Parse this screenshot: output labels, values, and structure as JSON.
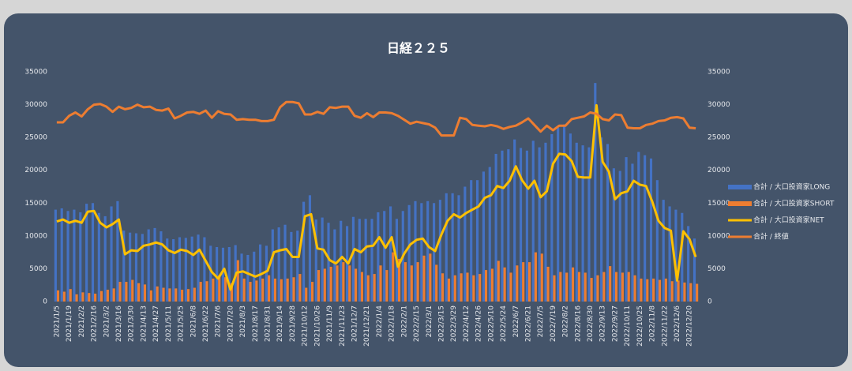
{
  "chart_data": {
    "type": "combo",
    "title": "日経２２５",
    "categories": [
      "2021/1/5",
      null,
      "2021/1/19",
      null,
      "2021/2/2",
      null,
      "2021/2/16",
      null,
      "2021/3/2",
      null,
      "2021/3/16",
      null,
      "2021/3/30",
      null,
      "2021/4/13",
      null,
      "2021/4/27",
      null,
      "2021/5/11",
      null,
      "2021/5/25",
      null,
      "2021/6/8",
      null,
      "2021/6/22",
      null,
      "2021/7/6",
      null,
      "2021/7/20",
      null,
      "2021/8/3",
      null,
      "2021/8/17",
      null,
      "2021/8/31",
      null,
      "2021/9/14",
      null,
      "2021/9/28",
      null,
      "2021/10/12",
      null,
      "2021/10/26",
      null,
      "2021/11/9",
      null,
      "2021/11/23",
      null,
      "2021/12/7",
      null,
      "2021/12/21",
      null,
      "2022/1/4",
      null,
      "2022/1/18",
      null,
      "2022/2/1",
      null,
      "2022/2/15",
      null,
      "2022/3/1",
      null,
      "2022/3/15",
      null,
      "2022/3/29",
      null,
      "2022/4/12",
      null,
      "2022/4/26",
      null,
      "2022/5/10",
      null,
      "2022/5/24",
      null,
      "2022/6/7",
      null,
      "2022/6/21",
      null,
      "2022/7/5",
      null,
      "2022/7/19",
      null,
      "2022/8/2",
      null,
      "2022/8/16",
      null,
      "2022/8/30",
      null,
      "2022/9/13",
      null,
      "2022/9/27",
      null,
      "2022/10/11",
      null,
      "2022/10/25",
      null,
      "2022/11/8",
      null,
      "2022/11/22",
      null,
      "2022/12/6",
      null,
      "2022/12/20",
      null
    ],
    "series": [
      {
        "name": "合計 / 大口投資家LONG",
        "kind": "bar",
        "color": "#4472c4",
        "values": [
          14000,
          14200,
          13800,
          14000,
          13600,
          14900,
          15000,
          13500,
          13000,
          14500,
          15300,
          10800,
          10500,
          10400,
          10300,
          11000,
          11200,
          10700,
          9600,
          9500,
          9800,
          9700,
          9900,
          10200,
          9800,
          8500,
          8300,
          8200,
          8300,
          8600,
          7300,
          7100,
          7600,
          8700,
          8500,
          11000,
          11300,
          11700,
          10600,
          10800,
          15200,
          16200,
          12500,
          12800,
          12000,
          11000,
          12300,
          11500,
          12900,
          12600,
          12600,
          12600,
          13600,
          13800,
          14500,
          12600,
          13800,
          14700,
          15300,
          15000,
          15300,
          15000,
          15500,
          16500,
          16500,
          16200,
          17500,
          18500,
          18500,
          19800,
          20500,
          22500,
          23000,
          23200,
          24700,
          23400,
          23000,
          24500,
          23500,
          24200,
          25500,
          26500,
          27000,
          25600,
          24200,
          23800,
          23500,
          33300,
          25000,
          24000,
          20300,
          19900,
          22000,
          21000,
          22800,
          22300,
          21800,
          18500,
          15500,
          14500,
          14000,
          13500,
          11500,
          9600
        ]
      },
      {
        "name": "合計 / 大口投資家SHORT",
        "kind": "bar",
        "color": "#ed7d31",
        "values": [
          1700,
          1500,
          1900,
          1100,
          1400,
          1300,
          1200,
          1600,
          1800,
          2000,
          3000,
          3000,
          3300,
          2800,
          2600,
          1700,
          2300,
          2100,
          2000,
          2000,
          1800,
          1900,
          2100,
          3000,
          3100,
          3500,
          4000,
          3700,
          2800,
          6300,
          3500,
          3000,
          3200,
          3500,
          4000,
          3500,
          3400,
          3500,
          3700,
          4200,
          2100,
          3000,
          4800,
          5000,
          5300,
          5500,
          6000,
          5500,
          5000,
          4500,
          4000,
          4200,
          5500,
          4800,
          7500,
          6500,
          6000,
          5500,
          6000,
          7000,
          7300,
          5600,
          4300,
          3500,
          4000,
          4300,
          4400,
          4000,
          4200,
          4800,
          5000,
          6200,
          5200,
          4400,
          5500,
          6000,
          6000,
          7500,
          7300,
          5300,
          4000,
          4500,
          4400,
          5200,
          4500,
          4400,
          3600,
          4000,
          4500,
          5400,
          4500,
          4400,
          4500,
          4000,
          3500,
          3400,
          3500,
          3300,
          3500,
          3100,
          3200,
          2900,
          2800,
          2700
        ]
      },
      {
        "name": "合計 / 大口投資家NET",
        "kind": "line",
        "color": "#ffc000",
        "values": [
          12200,
          12500,
          12000,
          12300,
          12000,
          13700,
          13800,
          12000,
          11300,
          11800,
          12500,
          7200,
          7800,
          7700,
          8500,
          8700,
          9000,
          8700,
          7800,
          7400,
          7900,
          7700,
          7100,
          7900,
          6200,
          4500,
          3500,
          5000,
          1800,
          4400,
          4600,
          4200,
          3800,
          4200,
          4700,
          7500,
          7800,
          8000,
          6800,
          6800,
          13000,
          13300,
          8100,
          7900,
          6300,
          5800,
          6800,
          5800,
          8000,
          7500,
          8400,
          8500,
          9800,
          8200,
          9800,
          5300,
          7300,
          8700,
          9400,
          9600,
          8300,
          7700,
          10200,
          12300,
          13300,
          12800,
          13500,
          14000,
          14500,
          15800,
          16200,
          17600,
          17300,
          18400,
          20600,
          18500,
          17200,
          18400,
          15900,
          16800,
          21000,
          22500,
          22400,
          21400,
          19000,
          18900,
          18900,
          29900,
          21300,
          19800,
          15600,
          16500,
          16800,
          18400,
          17800,
          17600,
          15200,
          12300,
          11200,
          10800,
          3200,
          10700,
          9500,
          6800
        ]
      },
      {
        "name": "合計 / 終値",
        "kind": "line",
        "axis": "y2",
        "color": "#ed7d31",
        "values": [
          27300,
          27300,
          28300,
          28800,
          28200,
          29300,
          30000,
          30100,
          29700,
          28900,
          29700,
          29300,
          29500,
          30000,
          29600,
          29700,
          29200,
          29100,
          29400,
          27900,
          28300,
          28800,
          28900,
          28600,
          29100,
          28000,
          29000,
          28600,
          28500,
          27700,
          27800,
          27700,
          27700,
          27500,
          27500,
          27700,
          29600,
          30400,
          30400,
          30200,
          28500,
          28500,
          28900,
          28600,
          29600,
          29500,
          29700,
          29700,
          28300,
          28000,
          28700,
          28100,
          28800,
          28800,
          28700,
          28300,
          27700,
          27100,
          27400,
          27200,
          27000,
          26500,
          25300,
          25300,
          25300,
          28000,
          27800,
          26900,
          26800,
          26700,
          26900,
          26700,
          26300,
          26600,
          26800,
          27300,
          27900,
          26900,
          25900,
          26800,
          26100,
          26800,
          26800,
          27800,
          28000,
          28200,
          28800,
          28600,
          27800,
          27600,
          28500,
          28400,
          26500,
          26400,
          26400,
          26900,
          27100,
          27500,
          27600,
          28000,
          28100,
          27900,
          26500,
          26400
        ]
      }
    ],
    "ylim": [
      0,
      35000
    ],
    "yticks": [
      0,
      5000,
      10000,
      15000,
      20000,
      25000,
      30000,
      35000
    ],
    "y2lim": [
      0,
      35000
    ],
    "y2ticks": [
      0,
      5000,
      10000,
      15000,
      20000,
      25000,
      30000,
      35000
    ],
    "grid": false,
    "legend": "right"
  }
}
